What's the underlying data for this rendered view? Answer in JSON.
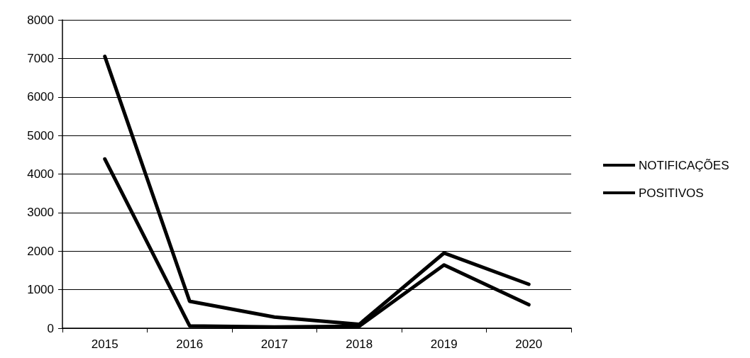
{
  "chart_data": {
    "type": "line",
    "categories": [
      "2015",
      "2016",
      "2017",
      "2018",
      "2019",
      "2020"
    ],
    "series": [
      {
        "name": "NOTIFICAÇÕES",
        "color": "#000000",
        "values": [
          7050,
          700,
          290,
          100,
          1950,
          1140
        ]
      },
      {
        "name": "POSITIVOS",
        "color": "#000000",
        "values": [
          4390,
          60,
          30,
          50,
          1640,
          610
        ]
      }
    ],
    "ylim": [
      0,
      8000
    ],
    "yticks": [
      0,
      1000,
      2000,
      3000,
      4000,
      5000,
      6000,
      7000,
      8000
    ],
    "grid": "y",
    "legend": "right",
    "marker": "none",
    "line_style": "solid"
  }
}
